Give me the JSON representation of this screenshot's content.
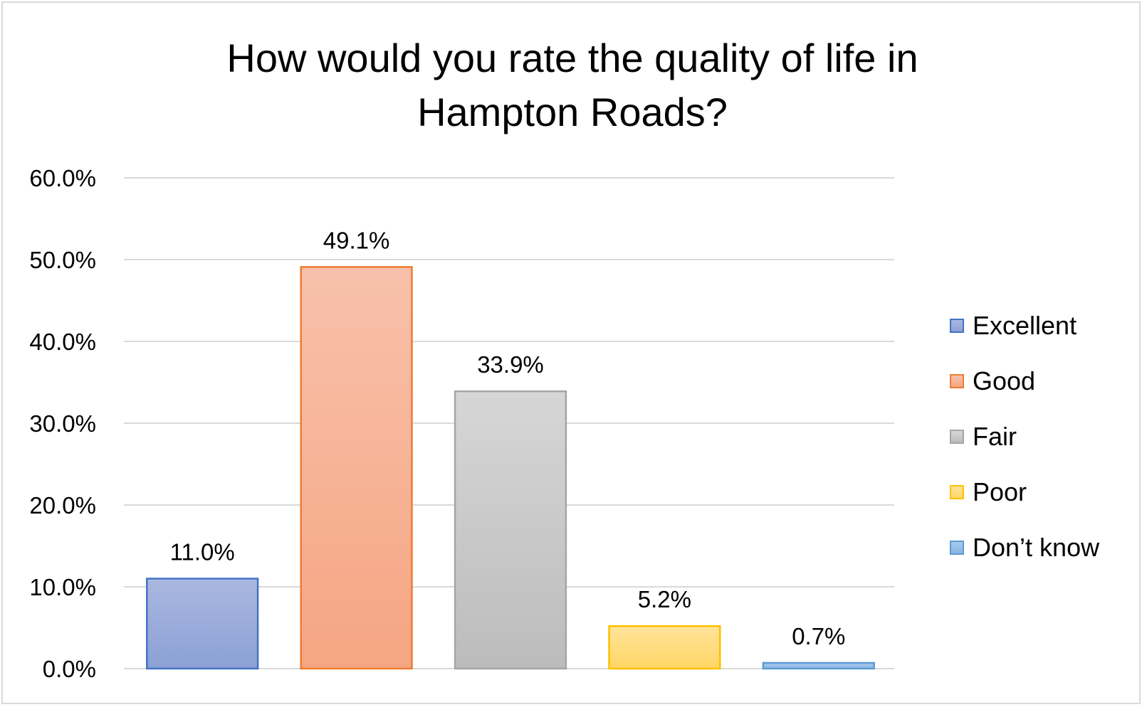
{
  "chart_data": {
    "type": "bar",
    "title": [
      "How would you rate the quality of life in",
      "Hampton Roads?"
    ],
    "categories": [
      "Excellent",
      "Good",
      "Fair",
      "Poor",
      "Don’t know"
    ],
    "values": [
      11.0,
      49.1,
      33.9,
      5.2,
      0.7
    ],
    "data_labels": [
      "11.0%",
      "49.1%",
      "33.9%",
      "5.2%",
      "0.7%"
    ],
    "y_ticks": [
      0,
      10,
      20,
      30,
      40,
      50,
      60
    ],
    "y_tick_labels": [
      "0.0%",
      "10.0%",
      "20.0%",
      "30.0%",
      "40.0%",
      "50.0%",
      "60.0%"
    ],
    "ylim": [
      0,
      60
    ],
    "grid": true,
    "legend_position": "right",
    "colors": {
      "fill_top": [
        "#aab8e0",
        "#f8c1ab",
        "#d6d6d6",
        "#ffe39a",
        "#a9c9ec"
      ],
      "fill_bottom": [
        "#8ca0d6",
        "#f5a582",
        "#bcbcbc",
        "#ffd666",
        "#8ab5e3"
      ],
      "border": [
        "#4472c4",
        "#ed7d31",
        "#a5a5a5",
        "#ffc000",
        "#5b9bd5"
      ]
    }
  }
}
